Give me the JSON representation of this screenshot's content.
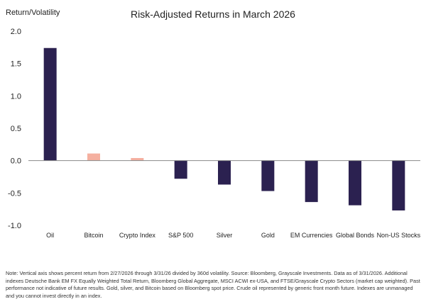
{
  "chart_data": {
    "type": "bar",
    "title": "Risk-Adjusted Returns in March 2026",
    "ylabel": "Return/Volatility",
    "xlabel": "",
    "ylim": [
      -1.0,
      2.0
    ],
    "yticks": [
      "2.0",
      "1.5",
      "1.0",
      "0.5",
      "0.0",
      "-0.5",
      "-1.0"
    ],
    "ytick_values": [
      2.0,
      1.5,
      1.0,
      0.5,
      0.0,
      -0.5,
      -1.0
    ],
    "categories": [
      "Oil",
      "Bitcoin",
      "Crypto Index",
      "S&P 500",
      "Silver",
      "Gold",
      "EM Currencies",
      "Global Bonds",
      "Non-US Stocks"
    ],
    "values": [
      1.74,
      0.11,
      0.04,
      -0.28,
      -0.37,
      -0.47,
      -0.64,
      -0.69,
      -0.77
    ],
    "bar_colors": [
      "#2b2150",
      "#f5b0a0",
      "#f5b0a0",
      "#2b2150",
      "#2b2150",
      "#2b2150",
      "#2b2150",
      "#2b2150",
      "#2b2150"
    ],
    "grid": false,
    "legend": "none"
  },
  "note": "Note: Vertical axis shows percent return from 2/27/2026 through 3/31/26 divided by 360d volatility. Source: Bloomberg, Grayscale Investments. Data as of 3/31/2026. Additional indexes Deutsche Bank EM FX Equally Weighted Total Return, Bloomberg Global Aggregate, MSCI ACWI ex-USA, and FTSE/Grayscale Crypto Sectors (market cap weighted). Past performance not indicative of future results. Gold, silver, and Bitcoin based on Bloomberg spot price. Crude oil represented by generic front month future. Indexes are unmanaged and you cannot invest directly in an index."
}
